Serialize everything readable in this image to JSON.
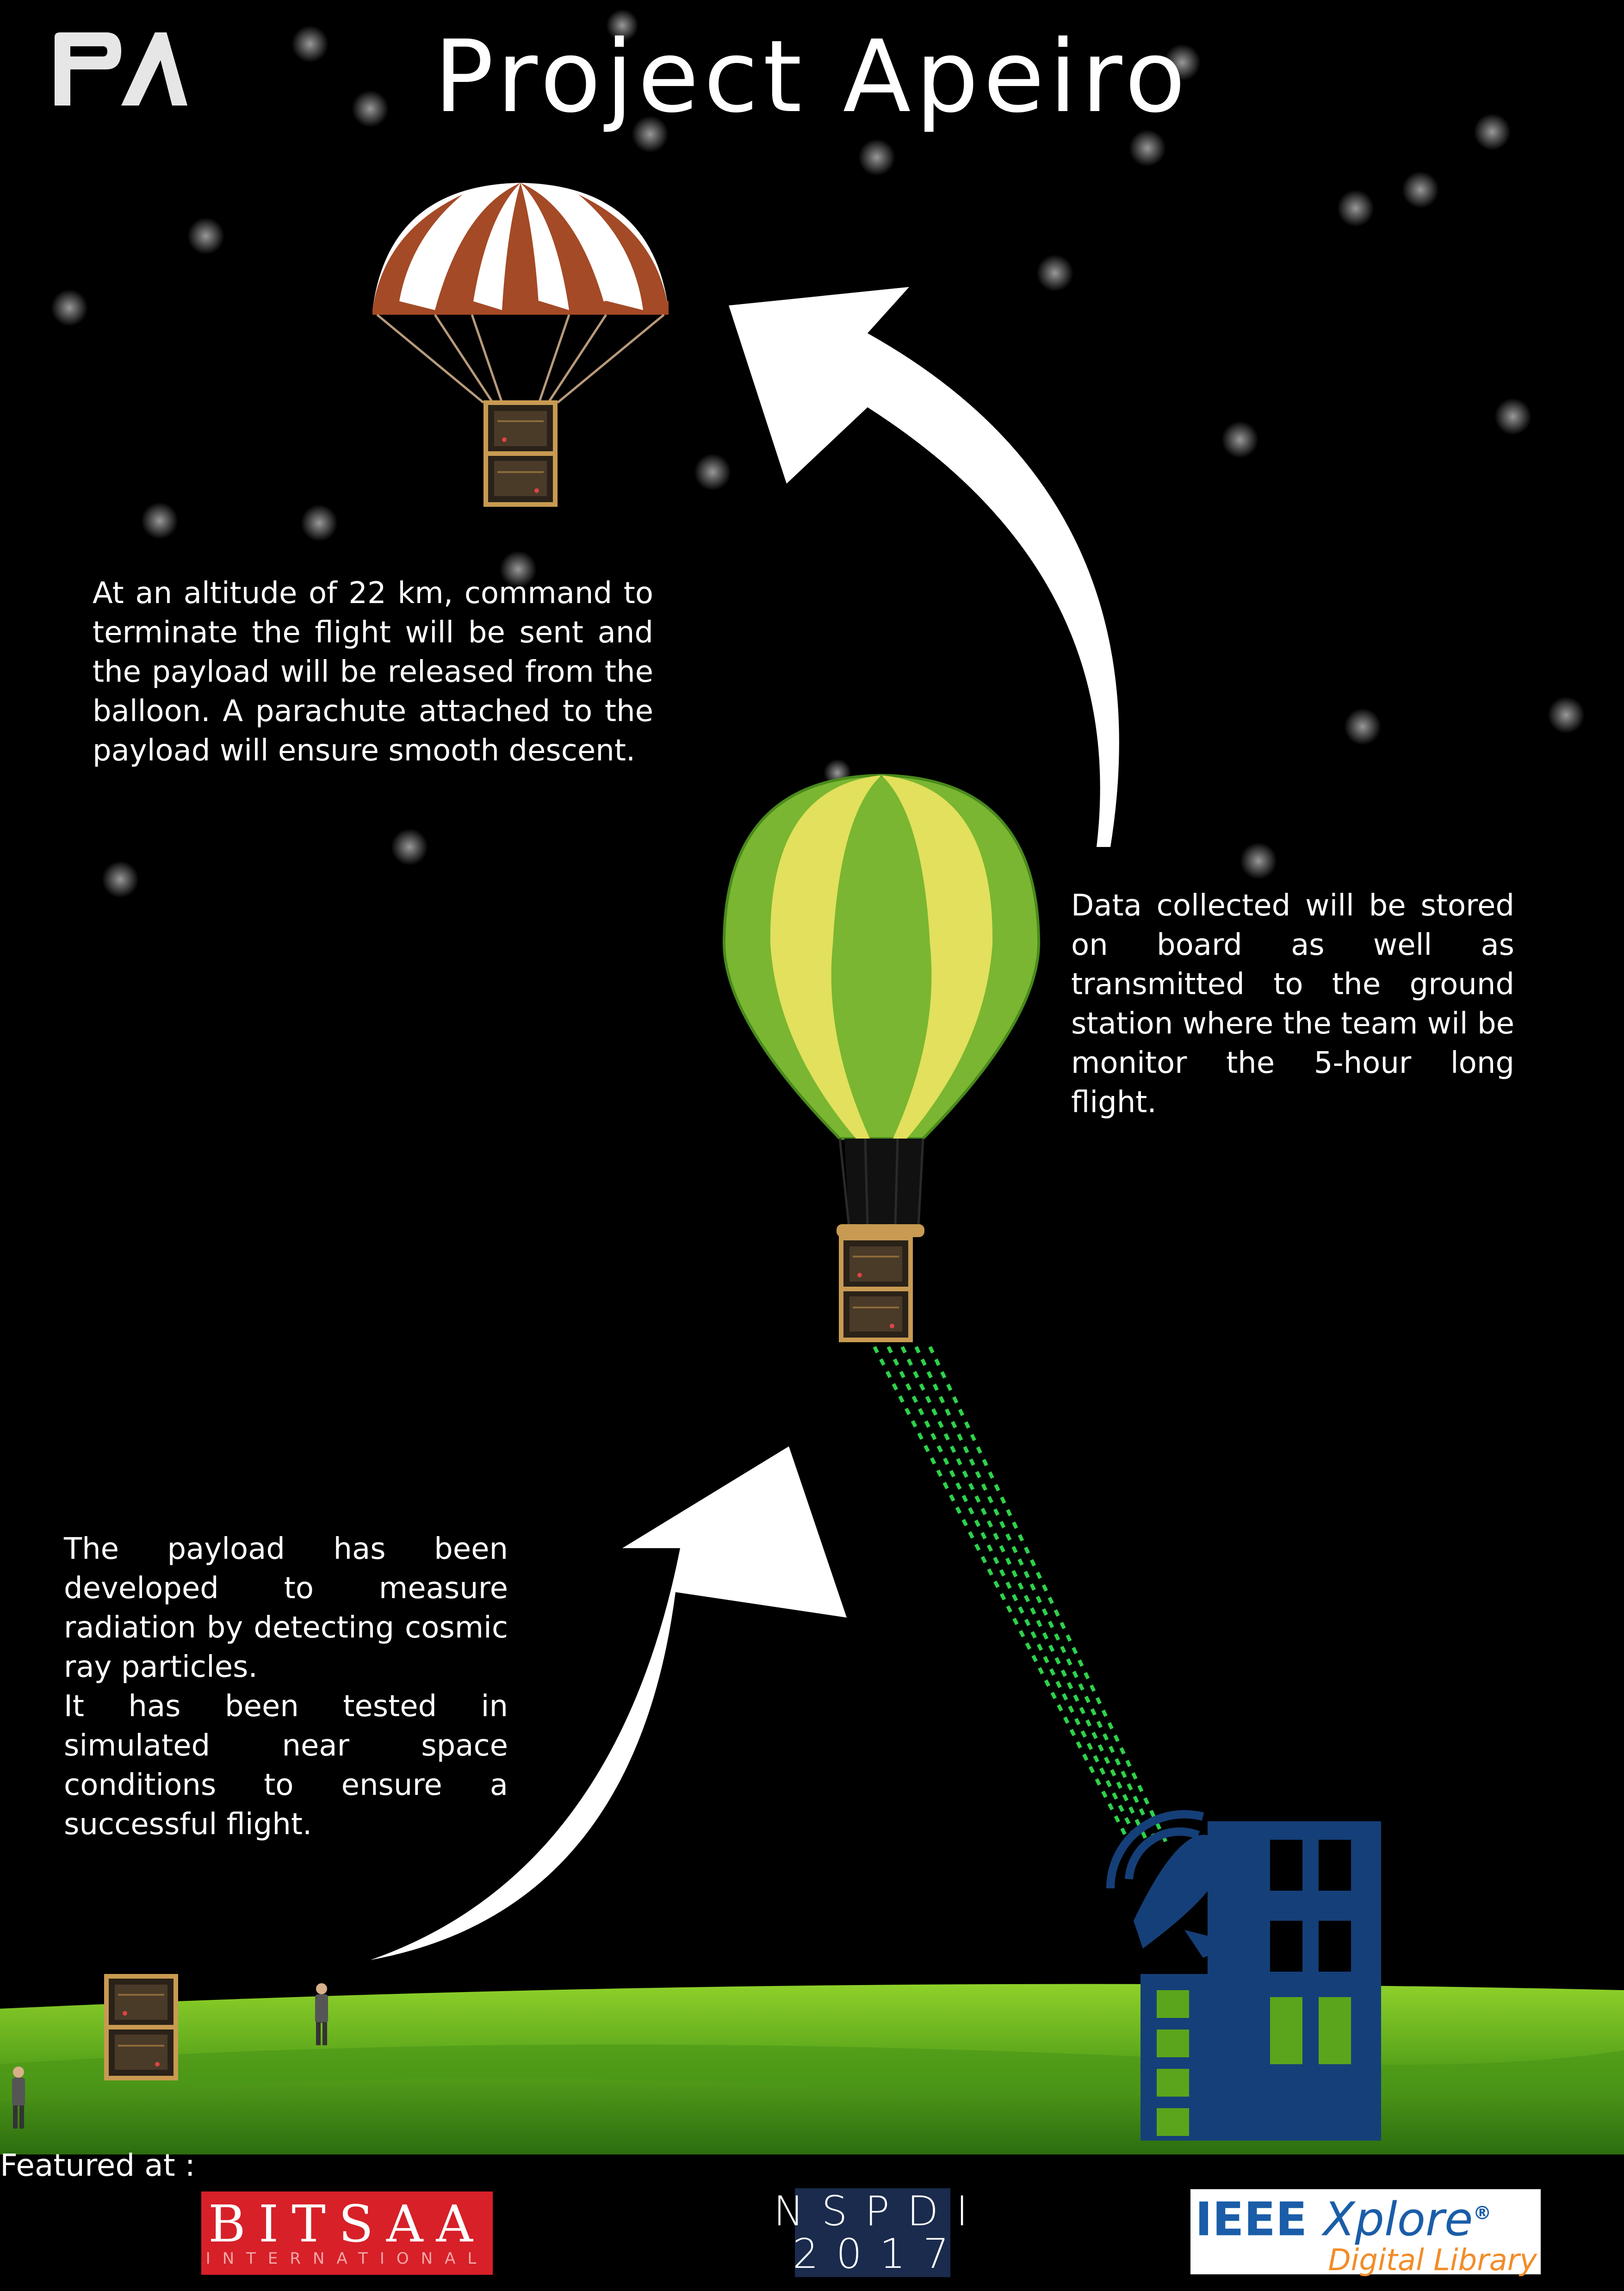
{
  "logo": {
    "text": "PA"
  },
  "title": "Project Apeiro",
  "paragraphs": {
    "descent": "At an altitude of 22 km, command to terminate the flight will be sent and the payload will be released from the balloon. A parachute attached to the payload will ensure smooth descent.",
    "data": "Data collected will be stored on board as well as transmitted to the ground station where the team wil be monitor the 5-hour long flight.",
    "payload_1": "The payload has been developed to measure radiation by detecting cosmic ray particles.",
    "payload_2": "It has been tested in simulated near space conditions to ensure a successful flight."
  },
  "featured_label": "Featured at :",
  "sponsors": {
    "bitsaa": {
      "main": "BITSAA",
      "sub": "INTERNATIONAL"
    },
    "nspdi": {
      "line1": "NSPDI",
      "line2": "2017"
    },
    "ieee": {
      "main": "IEEE",
      "main_italic": "Xplore",
      "reg": "®",
      "sub": "Digital Library"
    }
  },
  "colors": {
    "background": "#000000",
    "parachute": "#a44a26",
    "balloon_green": "#7ab631",
    "balloon_yellow": "#e2e05c",
    "ground": "#5aa51b",
    "building": "#153f78",
    "data_beam": "#2fd14a"
  },
  "icons": [
    "pa-logo-icon",
    "parachute-icon",
    "hot-air-balloon-icon",
    "payload-cube-icon",
    "satellite-dish-icon",
    "ground-station-building-icon",
    "person-icon",
    "arrow-up-icon"
  ]
}
